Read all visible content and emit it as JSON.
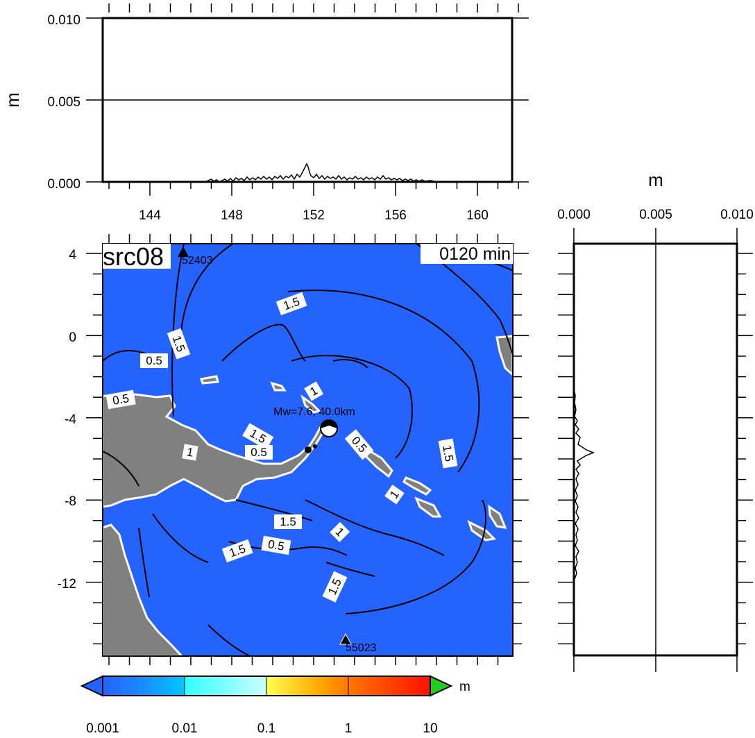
{
  "top_panel": {
    "ylabel": "m",
    "yticks": [
      "0.000",
      "0.005",
      "0.010"
    ],
    "xticks": [
      "144",
      "148",
      "152",
      "156",
      "160"
    ]
  },
  "side_panel": {
    "xlabel": "m",
    "xticks": [
      "0.000",
      "0.005",
      "0.010"
    ]
  },
  "map": {
    "run_label": "src08",
    "time_label": "0120 min",
    "yticks": [
      "4",
      "0",
      "-4",
      "-8",
      "-12"
    ],
    "source_label": "Mw=7.6, 40.0km",
    "stations": [
      {
        "id": "52403",
        "lon": 145.9,
        "lat": 4.1
      },
      {
        "id": "55023",
        "lon": 153.9,
        "lat": -14.8
      }
    ],
    "contour_labels": [
      "1.5",
      "1.5",
      "0.5",
      "0.5",
      "1",
      "1.5",
      "0.5",
      "1",
      "0.5",
      "1.5",
      "1",
      "1.5",
      "1",
      "1.5",
      "0.5",
      "1.5"
    ],
    "colors": {
      "ocean": "#2563ff",
      "land": "#808080"
    }
  },
  "colorbar": {
    "unit": "m",
    "ticks": [
      "0.001",
      "0.01",
      "0.1",
      "1",
      "10"
    ],
    "under_color": "#2563ff",
    "over_color": "#22cc22"
  }
}
